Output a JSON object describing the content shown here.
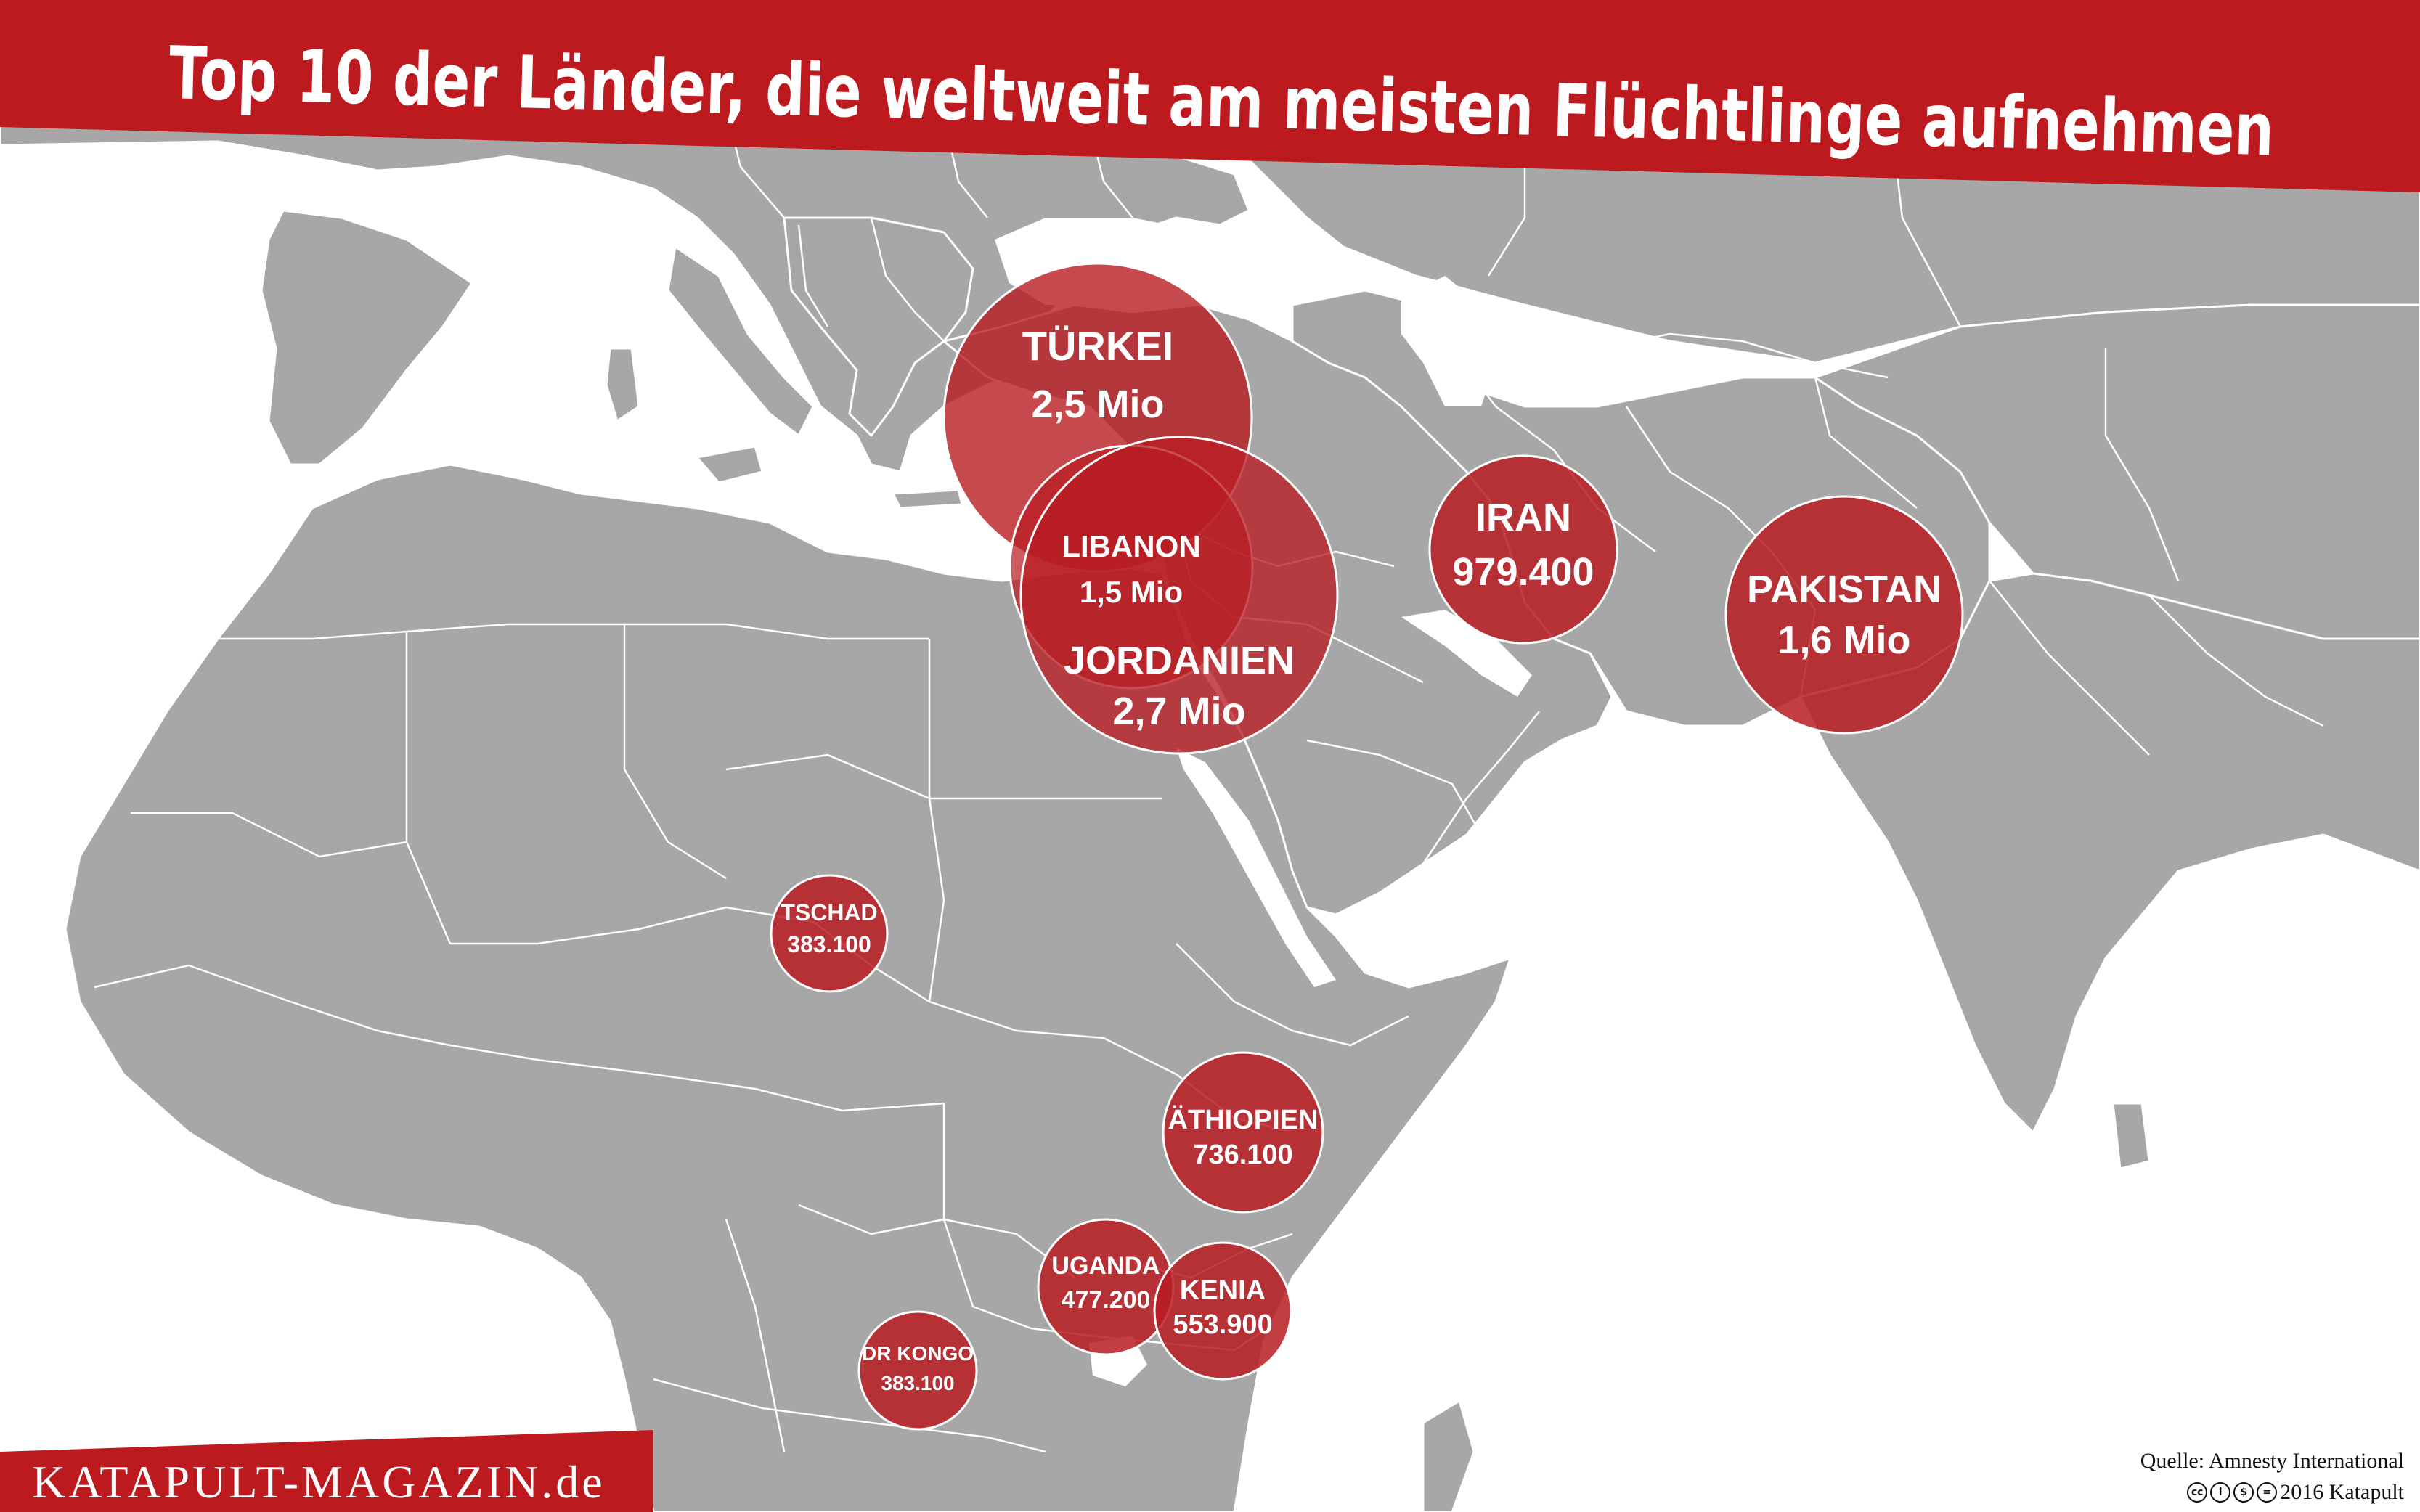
{
  "title": "Top 10 der Länder, die weltweit am meisten Flüchtlinge aufnehmen",
  "brand": "KATAPULT-MAGAZIN.de",
  "source": "Quelle: Amnesty International",
  "copyright": "2016 Katapult",
  "license_icons": [
    "cc-icon",
    "by-icon",
    "nc-icon",
    "nd-icon"
  ],
  "colors": {
    "accent": "#bd1a1f",
    "land": "#a7a7a7",
    "border": "#ffffff",
    "bubble": "#b81c22"
  },
  "countries": [
    {
      "id": "tuerkei",
      "name": "TÜRKEI",
      "value": "2,5 Mio",
      "refugees": 2500000
    },
    {
      "id": "libanon",
      "name": "LIBANON",
      "value": "1,5 Mio",
      "refugees": 1500000
    },
    {
      "id": "jordanien",
      "name": "JORDANIEN",
      "value": "2,7 Mio",
      "refugees": 2700000
    },
    {
      "id": "iran",
      "name": "IRAN",
      "value": "979.400",
      "refugees": 979400
    },
    {
      "id": "pakistan",
      "name": "PAKISTAN",
      "value": "1,6 Mio",
      "refugees": 1600000
    },
    {
      "id": "tschad",
      "name": "TSCHAD",
      "value": "383.100",
      "refugees": 383100
    },
    {
      "id": "aethiopien",
      "name": "ÄTHIOPIEN",
      "value": "736.100",
      "refugees": 736100
    },
    {
      "id": "uganda",
      "name": "UGANDA",
      "value": "477.200",
      "refugees": 477200
    },
    {
      "id": "kenia",
      "name": "KENIA",
      "value": "553.900",
      "refugees": 553900
    },
    {
      "id": "drkongo",
      "name": "DR KONGO",
      "value": "383.100",
      "refugees": 383100
    }
  ]
}
